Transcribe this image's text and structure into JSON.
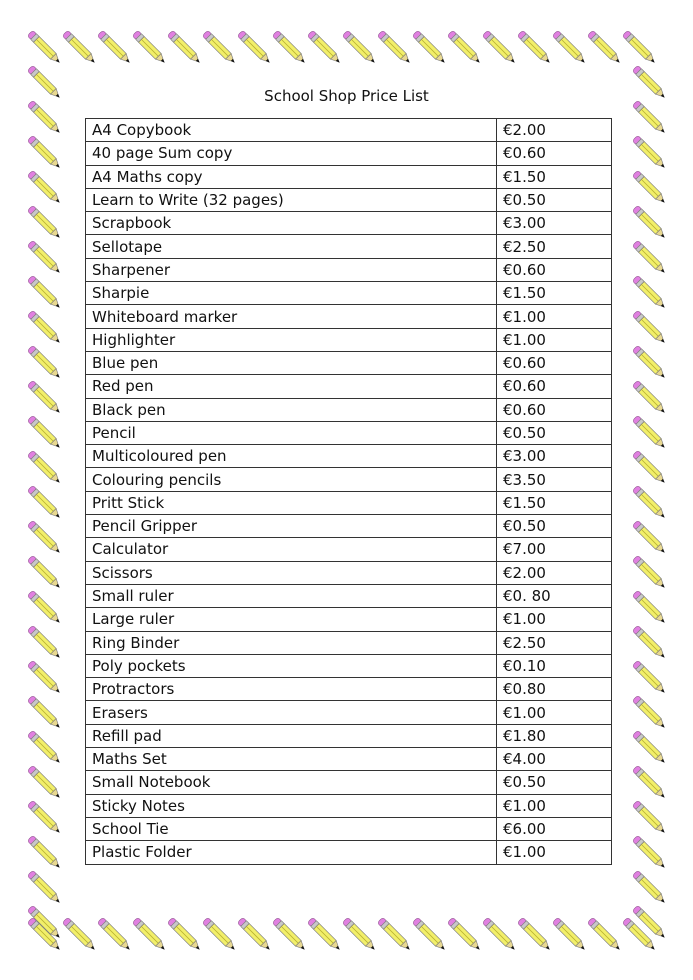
{
  "title": "School Shop Price List",
  "border_icon": "pencil-icon",
  "colors": {
    "pencil_body": "#f2ef6a",
    "eraser": "#e080e0",
    "ferrule": "#c8c8c8"
  },
  "items": [
    {
      "name": "A4 Copybook",
      "price": "€2.00"
    },
    {
      "name": "40 page Sum copy",
      "price": "€0.60"
    },
    {
      "name": "A4 Maths copy",
      "price": "€1.50"
    },
    {
      "name": "Learn to Write (32 pages)",
      "price": "€0.50"
    },
    {
      "name": "Scrapbook",
      "price": "€3.00"
    },
    {
      "name": "Sellotape",
      "price": "€2.50"
    },
    {
      "name": "Sharpener",
      "price": "€0.60"
    },
    {
      "name": "Sharpie",
      "price": "€1.50"
    },
    {
      "name": "Whiteboard marker",
      "price": "€1.00"
    },
    {
      "name": "Highlighter",
      "price": "€1.00"
    },
    {
      "name": "Blue pen",
      "price": "€0.60"
    },
    {
      "name": "Red pen",
      "price": "€0.60"
    },
    {
      "name": "Black pen",
      "price": "€0.60"
    },
    {
      "name": "Pencil",
      "price": "€0.50"
    },
    {
      "name": "Multicoloured pen",
      "price": "€3.00"
    },
    {
      "name": "Colouring pencils",
      "price": "€3.50"
    },
    {
      "name": "Pritt Stick",
      "price": "€1.50"
    },
    {
      "name": "Pencil Gripper",
      "price": "€0.50"
    },
    {
      "name": "Calculator",
      "price": "€7.00"
    },
    {
      "name": "Scissors",
      "price": "€2.00"
    },
    {
      "name": "Small ruler",
      "price": "€0. 80"
    },
    {
      "name": "Large ruler",
      "price": "€1.00"
    },
    {
      "name": "Ring Binder",
      "price": "€2.50"
    },
    {
      "name": "Poly pockets",
      "price": "€0.10"
    },
    {
      "name": "Protractors",
      "price": "€0.80"
    },
    {
      "name": "Erasers",
      "price": "€1.00"
    },
    {
      "name": "Refill pad",
      "price": "€1.80"
    },
    {
      "name": "Maths Set",
      "price": "€4.00"
    },
    {
      "name": "Small Notebook",
      "price": "€0.50"
    },
    {
      "name": "Sticky Notes",
      "price": "€1.00"
    },
    {
      "name": "School Tie",
      "price": "€6.00"
    },
    {
      "name": "Plastic Folder",
      "price": "€1.00"
    }
  ]
}
